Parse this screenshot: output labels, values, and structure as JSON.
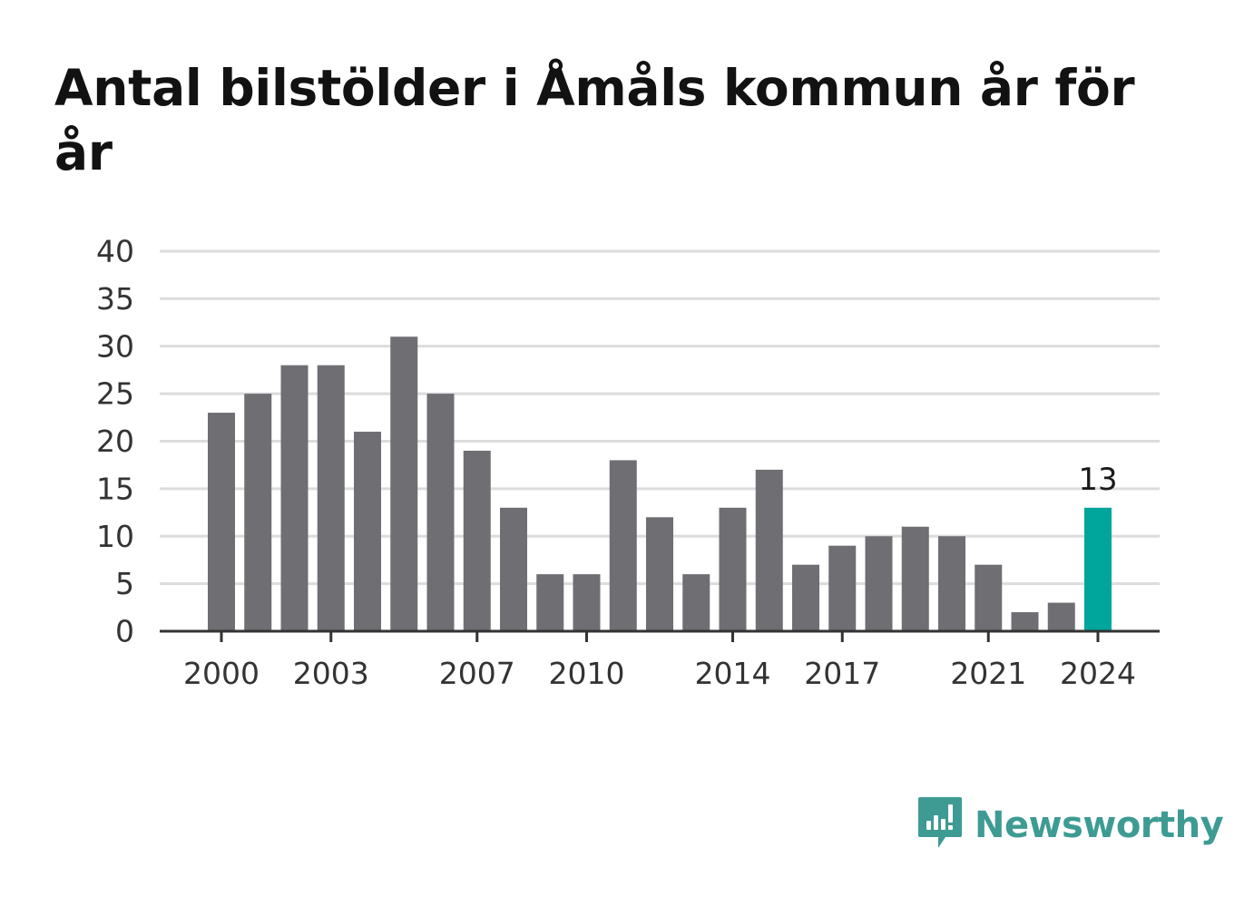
{
  "title": "Antal bilstölder i Åmåls kommun år för år",
  "brand": {
    "name": "Newsworthy",
    "color": "#3d9b93",
    "icon": "newsworthy-logo-icon"
  },
  "colors": {
    "bar": "#6f6e73",
    "highlight": "#00a59b",
    "grid": "#dcdcdc",
    "axis": "#333333"
  },
  "chart_data": {
    "type": "bar",
    "title": "Antal bilstölder i Åmåls kommun år för år",
    "xlabel": "",
    "ylabel": "",
    "categories": [
      "2000",
      "2001",
      "2002",
      "2003",
      "2004",
      "2005",
      "2006",
      "2007",
      "2008",
      "2009",
      "2010",
      "2011",
      "2012",
      "2013",
      "2014",
      "2015",
      "2016",
      "2017",
      "2018",
      "2019",
      "2020",
      "2021",
      "2022",
      "2023",
      "2024"
    ],
    "values": [
      23,
      25,
      28,
      28,
      21,
      31,
      25,
      19,
      13,
      6,
      6,
      18,
      12,
      6,
      13,
      17,
      7,
      9,
      10,
      11,
      10,
      7,
      2,
      3,
      13
    ],
    "x_tick_labels": [
      "2000",
      "2003",
      "2007",
      "2010",
      "2014",
      "2017",
      "2021",
      "2024"
    ],
    "ylim": [
      0,
      40
    ],
    "y_ticks": [
      0,
      5,
      10,
      15,
      20,
      25,
      30,
      35,
      40
    ],
    "grid": true,
    "highlight": {
      "category": "2024",
      "label": "13"
    }
  }
}
